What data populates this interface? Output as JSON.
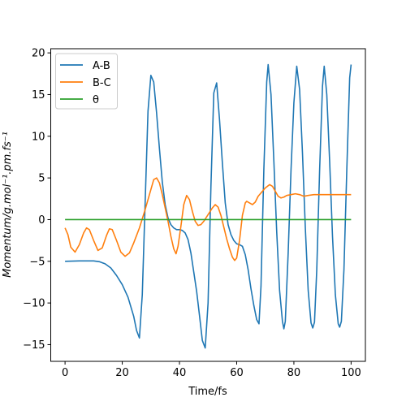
{
  "chart_data": {
    "type": "line",
    "xlabel": "Time/fs",
    "ylabel": "Momentum/g.mol⁻¹.pm.fs⁻¹",
    "xlim": [
      -5,
      105
    ],
    "ylim": [
      -17,
      20.5
    ],
    "xticks": [
      0,
      20,
      40,
      60,
      80,
      100
    ],
    "yticks": [
      -15,
      -10,
      -5,
      0,
      5,
      10,
      15,
      20
    ],
    "grid": false,
    "legend_position": "top-left",
    "series": [
      {
        "name": "A-B",
        "color": "#1f77b4",
        "points": [
          [
            0,
            -5
          ],
          [
            5,
            -4.95
          ],
          [
            10,
            -4.95
          ],
          [
            12,
            -5.05
          ],
          [
            14,
            -5.3
          ],
          [
            16,
            -5.8
          ],
          [
            18,
            -6.7
          ],
          [
            20,
            -7.8
          ],
          [
            22,
            -9.3
          ],
          [
            24,
            -11.6
          ],
          [
            25,
            -13.3
          ],
          [
            26,
            -14.2
          ],
          [
            27,
            -9
          ],
          [
            28,
            2
          ],
          [
            29,
            13
          ],
          [
            30,
            17.3
          ],
          [
            31,
            16.5
          ],
          [
            32,
            12.8
          ],
          [
            33,
            8.5
          ],
          [
            34,
            4.5
          ],
          [
            35,
            1.8
          ],
          [
            36,
            0.2
          ],
          [
            37,
            -0.6
          ],
          [
            38,
            -1.0
          ],
          [
            39,
            -1.2
          ],
          [
            40,
            -1.2
          ],
          [
            41,
            -1.3
          ],
          [
            42,
            -1.6
          ],
          [
            43,
            -2.4
          ],
          [
            44,
            -4
          ],
          [
            45,
            -6.3
          ],
          [
            46,
            -8.6
          ],
          [
            47,
            -11.5
          ],
          [
            48,
            -14.5
          ],
          [
            49,
            -15.4
          ],
          [
            50,
            -10
          ],
          [
            51,
            4
          ],
          [
            52,
            15.2
          ],
          [
            53,
            16.4
          ],
          [
            54,
            12
          ],
          [
            55,
            6.8
          ],
          [
            56,
            2
          ],
          [
            57,
            -0.6
          ],
          [
            58,
            -1.8
          ],
          [
            59,
            -2.5
          ],
          [
            60,
            -2.9
          ],
          [
            61,
            -3
          ],
          [
            62,
            -3.2
          ],
          [
            63,
            -4.2
          ],
          [
            64,
            -6
          ],
          [
            65,
            -8.3
          ],
          [
            66,
            -10.3
          ],
          [
            67,
            -12
          ],
          [
            67.8,
            -12.5
          ],
          [
            68.5,
            -8
          ],
          [
            69.5,
            6
          ],
          [
            70.5,
            16.5
          ],
          [
            71,
            18.6
          ],
          [
            72,
            15
          ],
          [
            73,
            7
          ],
          [
            74,
            -1.5
          ],
          [
            75,
            -8.5
          ],
          [
            76,
            -12.2
          ],
          [
            76.5,
            -13.1
          ],
          [
            77,
            -12.2
          ],
          [
            78,
            -4
          ],
          [
            79,
            6
          ],
          [
            80,
            14
          ],
          [
            81,
            18.4
          ],
          [
            82,
            15.6
          ],
          [
            83,
            8
          ],
          [
            84,
            -1
          ],
          [
            85,
            -8.5
          ],
          [
            86,
            -12.4
          ],
          [
            86.6,
            -13
          ],
          [
            87.2,
            -12.3
          ],
          [
            88,
            -6
          ],
          [
            89,
            6
          ],
          [
            90,
            16
          ],
          [
            90.6,
            18.4
          ],
          [
            91.5,
            15
          ],
          [
            92.5,
            7
          ],
          [
            93.5,
            -2
          ],
          [
            94.5,
            -9
          ],
          [
            95.5,
            -12.5
          ],
          [
            96,
            -12.9
          ],
          [
            96.6,
            -12.2
          ],
          [
            97.5,
            -6
          ],
          [
            98.5,
            6
          ],
          [
            99.5,
            17
          ],
          [
            100,
            18.6
          ]
        ]
      },
      {
        "name": "B-C",
        "color": "#ff7f0e",
        "points": [
          [
            0,
            -1
          ],
          [
            1,
            -1.8
          ],
          [
            2,
            -3.3
          ],
          [
            3.5,
            -3.9
          ],
          [
            5,
            -3.0
          ],
          [
            6.5,
            -1.6
          ],
          [
            7.5,
            -1.0
          ],
          [
            8.5,
            -1.2
          ],
          [
            10,
            -2.5
          ],
          [
            11.5,
            -3.7
          ],
          [
            13,
            -3.4
          ],
          [
            14.5,
            -1.9
          ],
          [
            15.5,
            -1.1
          ],
          [
            16.5,
            -1.2
          ],
          [
            18,
            -2.5
          ],
          [
            19.5,
            -3.9
          ],
          [
            21,
            -4.4
          ],
          [
            22.5,
            -4.0
          ],
          [
            24,
            -2.8
          ],
          [
            26,
            -1.0
          ],
          [
            28,
            1.2
          ],
          [
            29.5,
            3.0
          ],
          [
            31,
            4.8
          ],
          [
            32,
            5.0
          ],
          [
            33,
            4.4
          ],
          [
            34,
            3.0
          ],
          [
            35,
            1.4
          ],
          [
            36,
            -0.2
          ],
          [
            37,
            -2.0
          ],
          [
            38,
            -3.5
          ],
          [
            38.8,
            -4.1
          ],
          [
            39.5,
            -3.2
          ],
          [
            40.5,
            -0.8
          ],
          [
            41.5,
            1.8
          ],
          [
            42.5,
            2.9
          ],
          [
            43.5,
            2.4
          ],
          [
            44.5,
            1.0
          ],
          [
            45.5,
            -0.2
          ],
          [
            46.5,
            -0.7
          ],
          [
            47.5,
            -0.6
          ],
          [
            48.5,
            -0.2
          ],
          [
            50,
            0.6
          ],
          [
            51.5,
            1.4
          ],
          [
            52.5,
            1.8
          ],
          [
            53.5,
            1.5
          ],
          [
            54.5,
            0.5
          ],
          [
            55.5,
            -0.9
          ],
          [
            56.5,
            -2.3
          ],
          [
            57.5,
            -3.5
          ],
          [
            58.5,
            -4.5
          ],
          [
            59.3,
            -4.9
          ],
          [
            60,
            -4.6
          ],
          [
            61,
            -2.5
          ],
          [
            62,
            0.5
          ],
          [
            63,
            2.0
          ],
          [
            63.5,
            2.2
          ],
          [
            64.5,
            2.0
          ],
          [
            65.5,
            1.8
          ],
          [
            66.5,
            2.1
          ],
          [
            67.5,
            2.8
          ],
          [
            68.5,
            3.2
          ],
          [
            70,
            3.8
          ],
          [
            71.5,
            4.2
          ],
          [
            72.5,
            4.0
          ],
          [
            73.5,
            3.4
          ],
          [
            74.5,
            2.8
          ],
          [
            75.5,
            2.6
          ],
          [
            76.5,
            2.7
          ],
          [
            77.5,
            2.9
          ],
          [
            79,
            3.0
          ],
          [
            80.5,
            3.1
          ],
          [
            82,
            3.0
          ],
          [
            83.5,
            2.8
          ],
          [
            85,
            2.9
          ],
          [
            87,
            3.0
          ],
          [
            90,
            3.0
          ],
          [
            93,
            3.0
          ],
          [
            96,
            3.0
          ],
          [
            100,
            3.0
          ]
        ]
      },
      {
        "name": "θ",
        "color": "#2ca02c",
        "points": [
          [
            0,
            0
          ],
          [
            100,
            0
          ]
        ]
      }
    ]
  }
}
